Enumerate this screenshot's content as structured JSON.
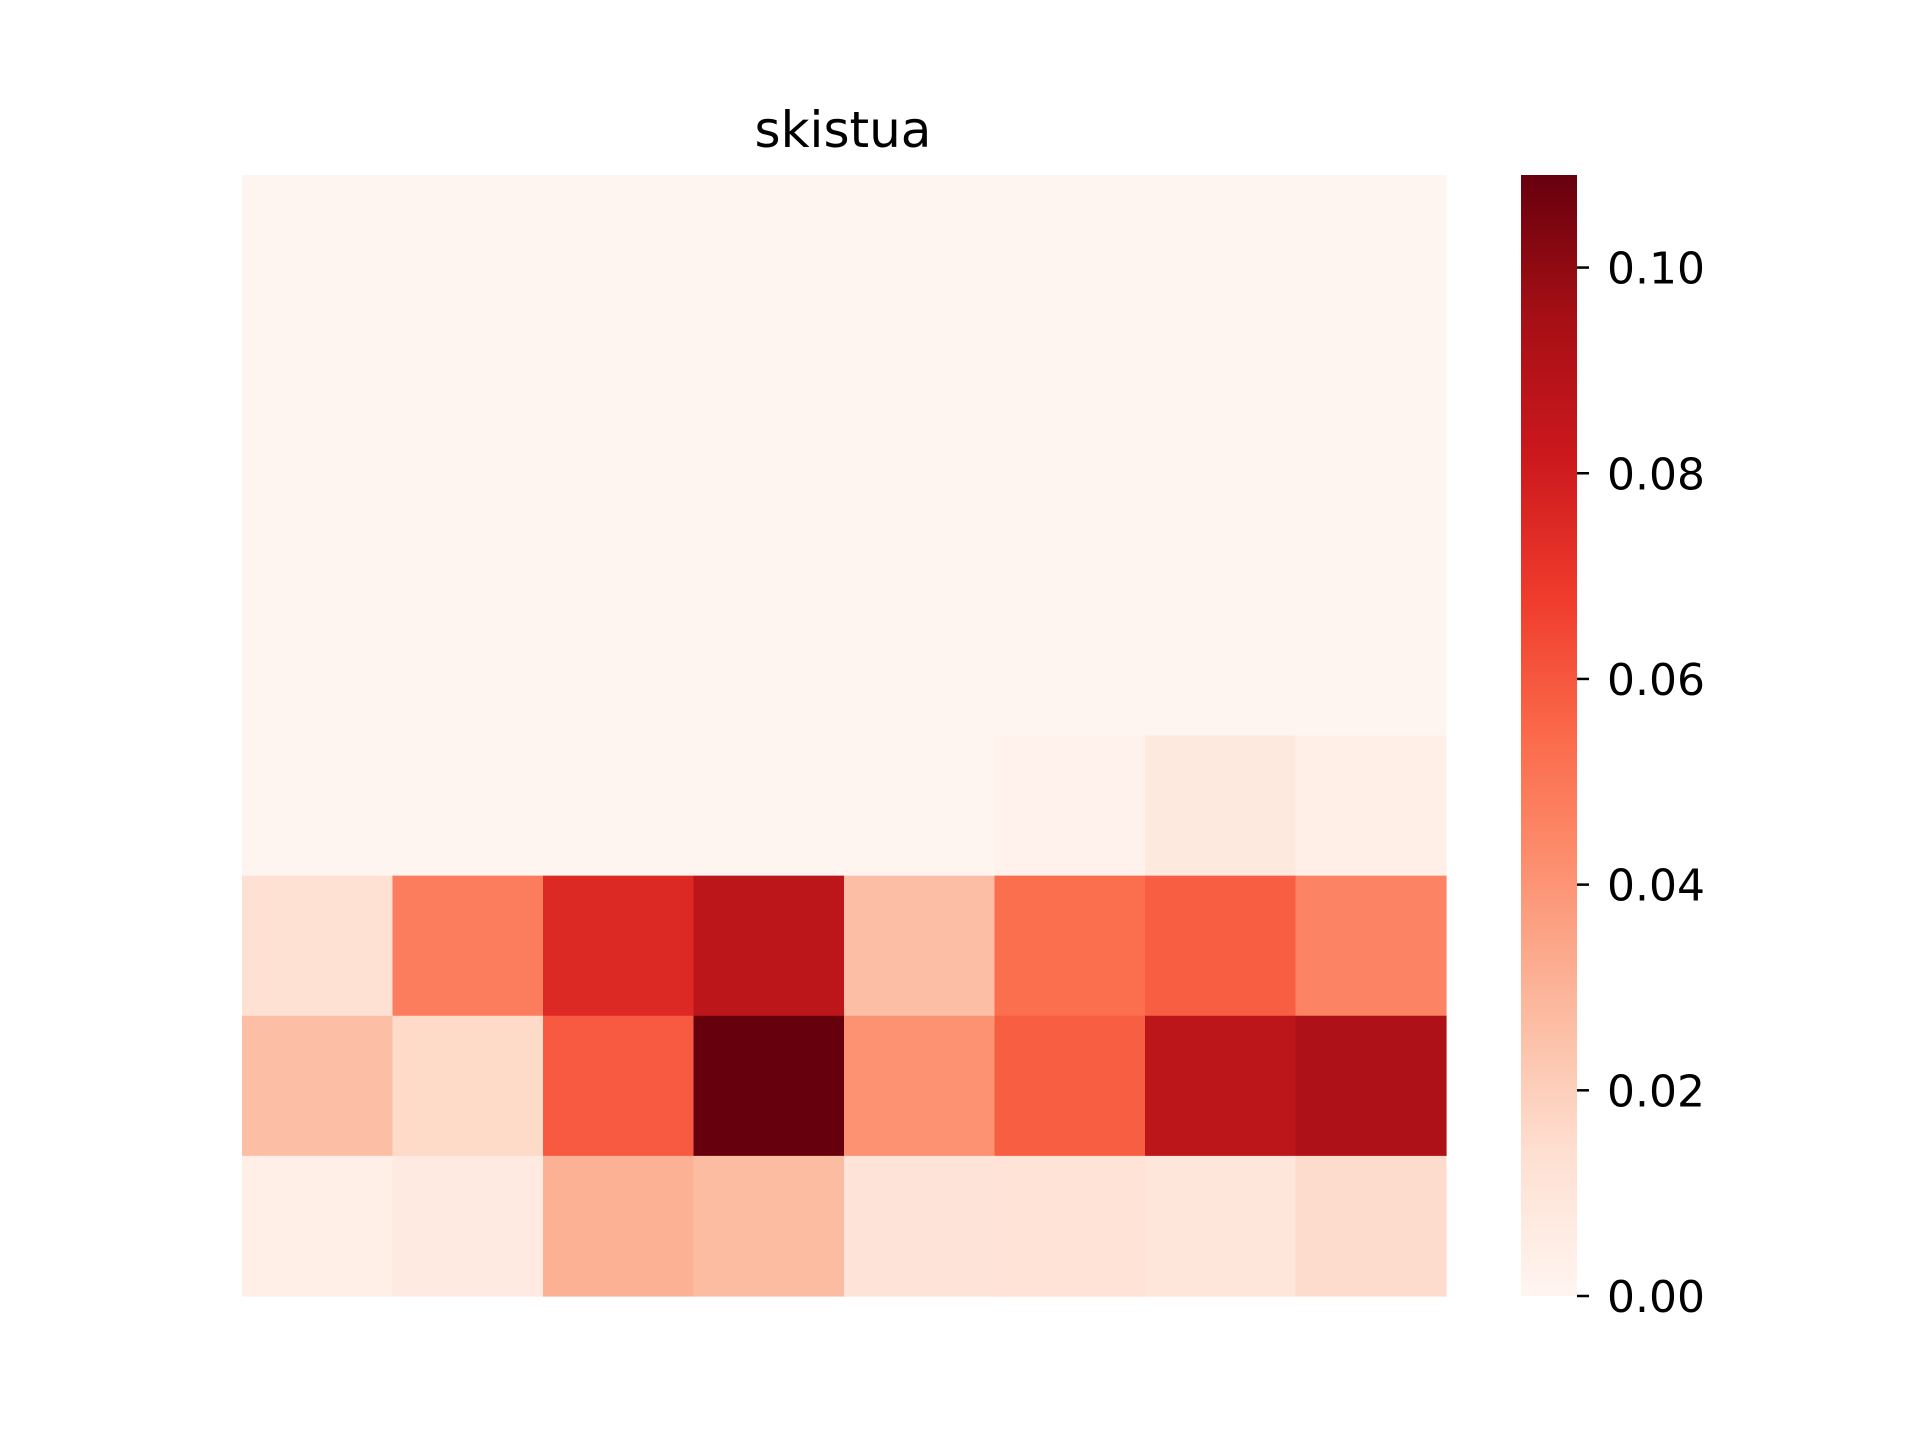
{
  "chart_data": {
    "type": "heatmap",
    "title": "skistua",
    "xlabel": "",
    "ylabel": "",
    "colormap": "Reds",
    "colormap_stops": [
      "#fff5f0",
      "#fee0d2",
      "#fcbba1",
      "#fc9272",
      "#fb6a4a",
      "#ef3b2c",
      "#cb181d",
      "#a50f15",
      "#67000d"
    ],
    "vmin": 0.0,
    "vmax": 0.109,
    "colorbar_ticks": [
      0.0,
      0.02,
      0.04,
      0.06,
      0.08,
      0.1
    ],
    "colorbar_tick_labels": [
      "0.00",
      "0.02",
      "0.04",
      "0.06",
      "0.08",
      "0.10"
    ],
    "rows": 8,
    "cols": 8,
    "values": [
      [
        0.0,
        0.0,
        0.0,
        0.0,
        0.0,
        0.0,
        0.0,
        0.0
      ],
      [
        0.0,
        0.0,
        0.0,
        0.0,
        0.0,
        0.0,
        0.0,
        0.0
      ],
      [
        0.0,
        0.0,
        0.0,
        0.0,
        0.0,
        0.0,
        0.0,
        0.0
      ],
      [
        0.0,
        0.0,
        0.0,
        0.0,
        0.0,
        0.0,
        0.0,
        0.0
      ],
      [
        0.0,
        0.0,
        0.0,
        0.0,
        0.0,
        0.002,
        0.008,
        0.004
      ],
      [
        0.013,
        0.048,
        0.075,
        0.087,
        0.026,
        0.053,
        0.058,
        0.046
      ],
      [
        0.026,
        0.016,
        0.059,
        0.109,
        0.041,
        0.058,
        0.087,
        0.092
      ],
      [
        0.004,
        0.007,
        0.031,
        0.027,
        0.011,
        0.012,
        0.01,
        0.015
      ]
    ]
  }
}
